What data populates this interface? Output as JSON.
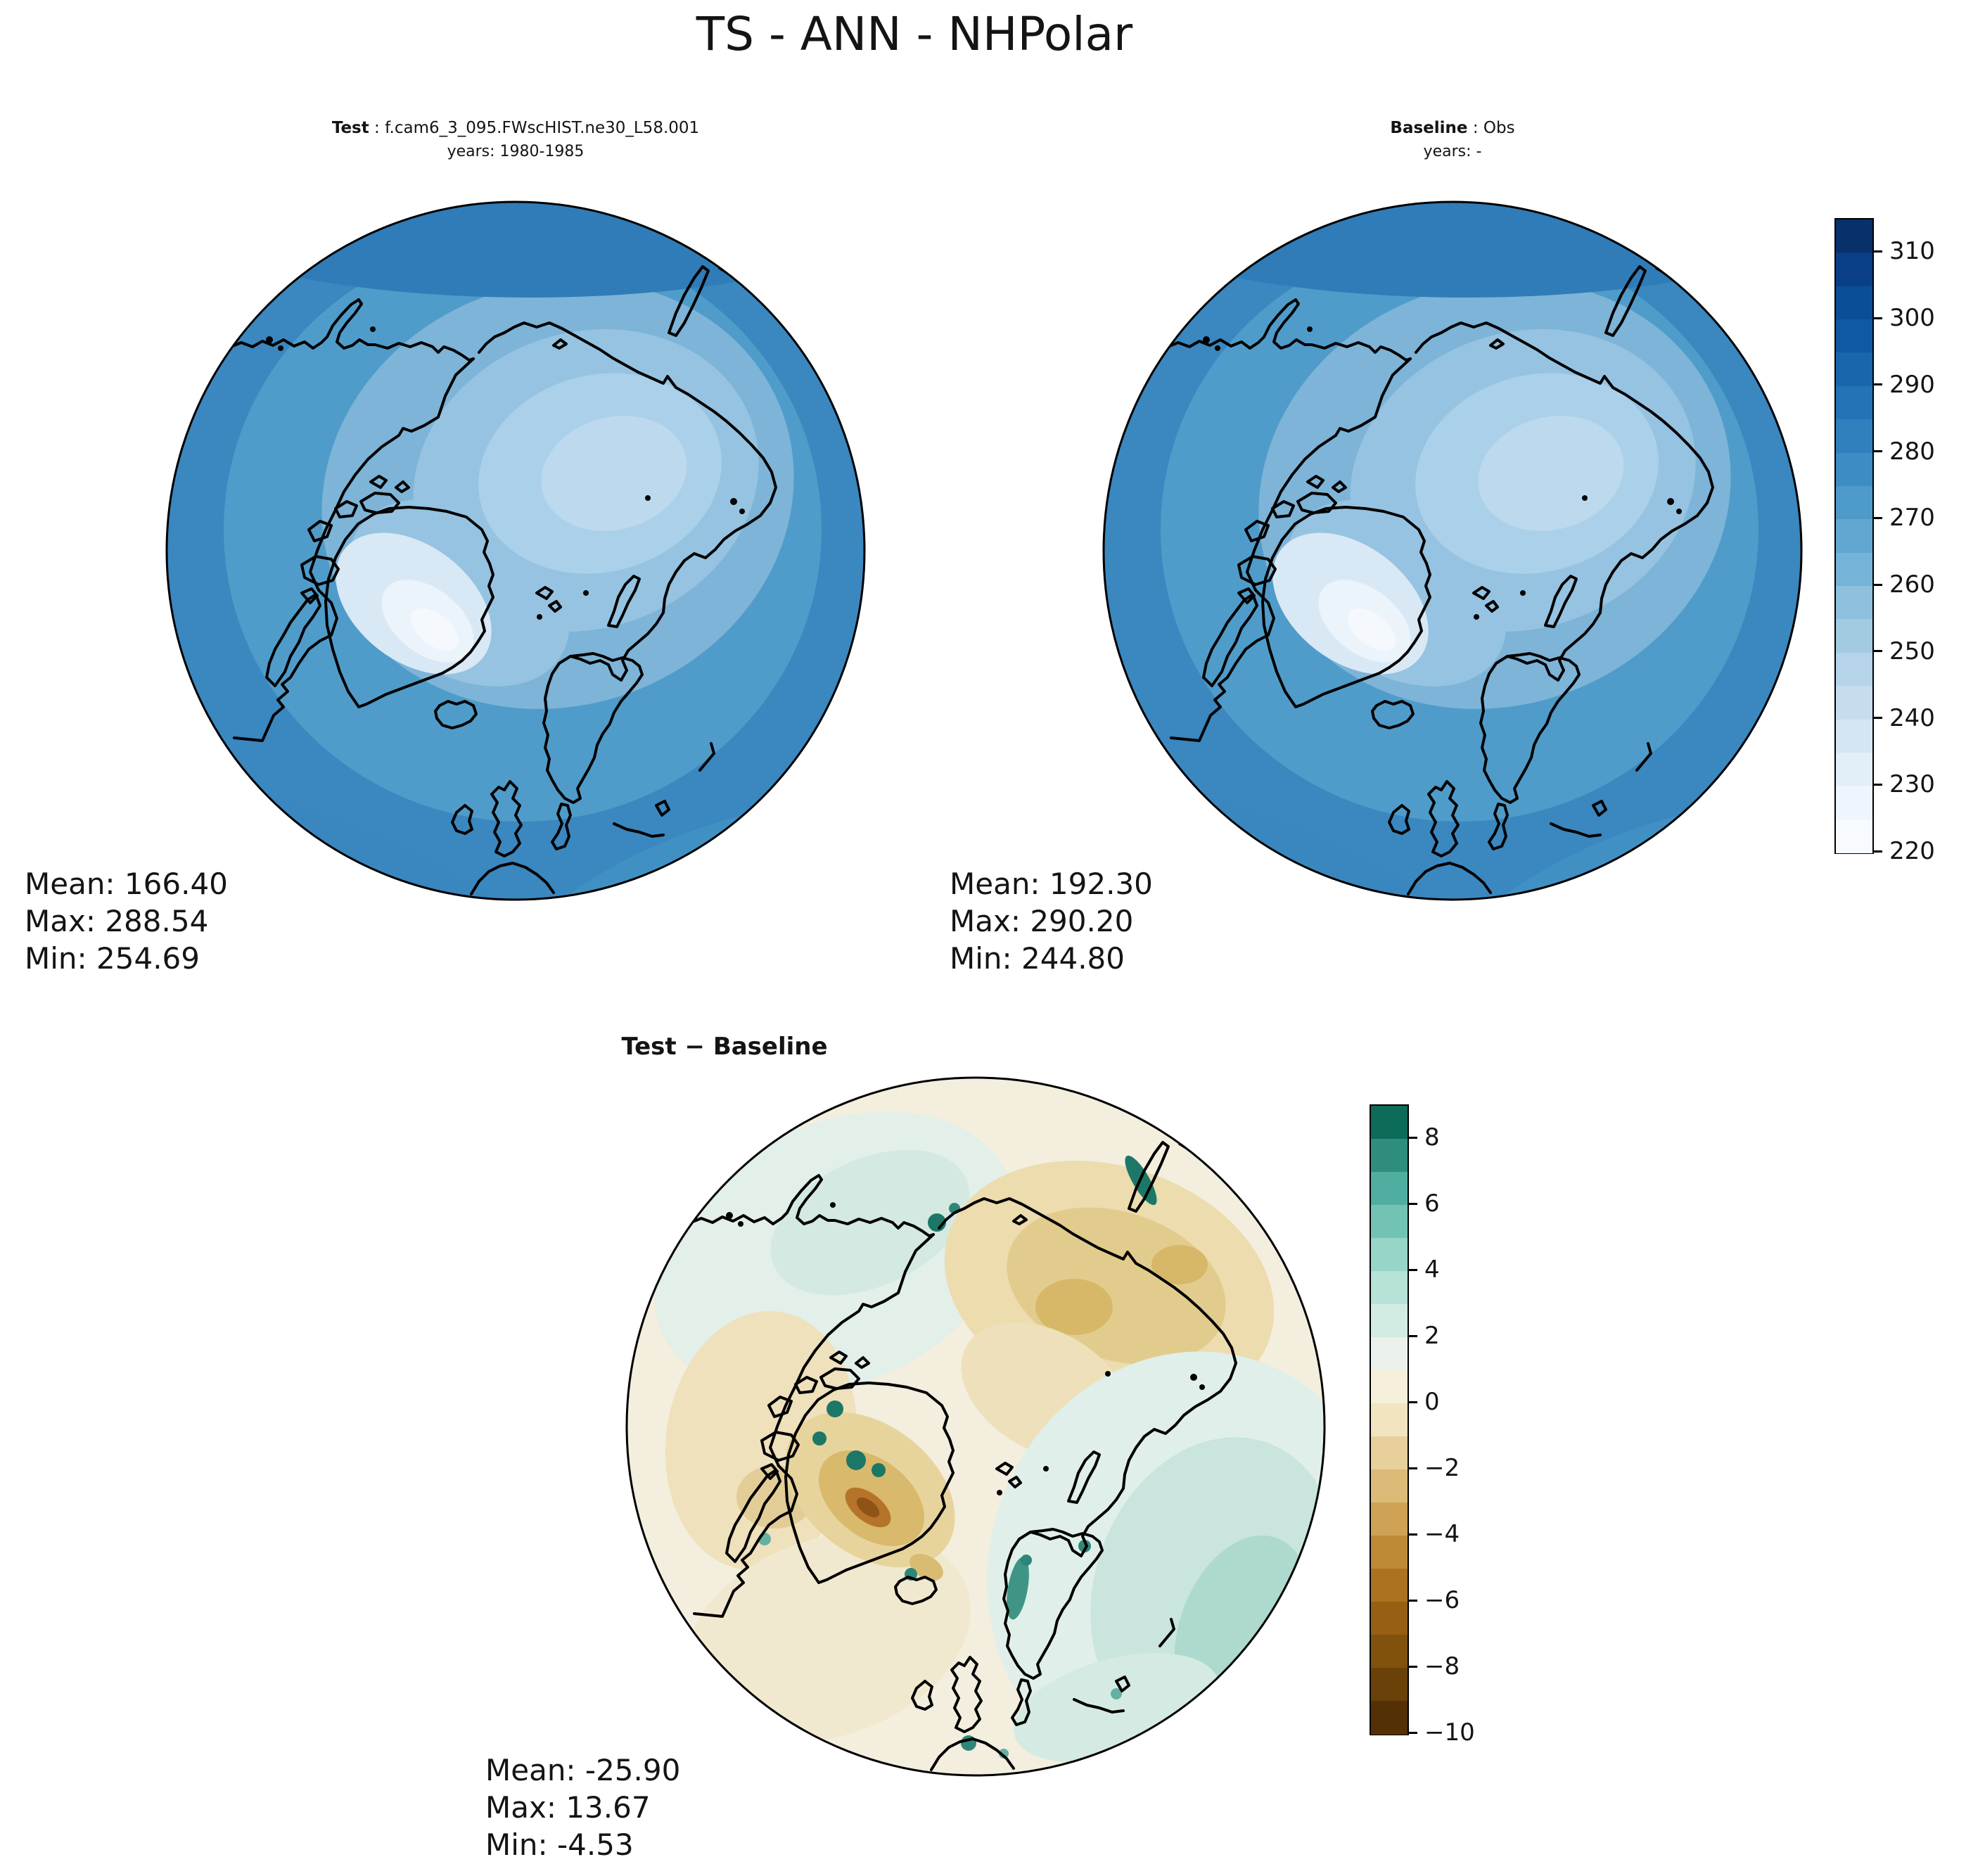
{
  "title": "TS - ANN - NHPolar",
  "panels": {
    "test": {
      "label": "Test",
      "sep": " : ",
      "name": "f.cam6_3_095.FWscHIST.ne30_L58.001",
      "years": "years: 1980-1985",
      "stats": {
        "mean": "Mean: 166.40",
        "max": "Max: 288.54",
        "min": "Min: 254.69"
      }
    },
    "baseline": {
      "label": "Baseline",
      "sep": " : ",
      "name": "Obs",
      "years": "years: -",
      "stats": {
        "mean": "Mean: 192.30",
        "max": "Max: 290.20",
        "min": "Min: 244.80"
      }
    },
    "diff": {
      "title": "Test − Baseline",
      "stats": {
        "mean": "Mean: -25.90",
        "max": "Max: 13.67",
        "min": "Min: -4.53"
      }
    }
  },
  "colorbars": [
    {
      "id": "temperature",
      "vmin": 220,
      "vmax": 315,
      "ticks": [
        {
          "label": "310",
          "v": 310
        },
        {
          "label": "300",
          "v": 300
        },
        {
          "label": "290",
          "v": 290
        },
        {
          "label": "280",
          "v": 280
        },
        {
          "label": "270",
          "v": 270
        },
        {
          "label": "260",
          "v": 260
        },
        {
          "label": "250",
          "v": 250
        },
        {
          "label": "240",
          "v": 240
        },
        {
          "label": "230",
          "v": 230
        },
        {
          "label": "220",
          "v": 220
        }
      ],
      "colors": [
        "#f7fbff",
        "#eef5fc",
        "#e2eef8",
        "#d5e5f4",
        "#c7dcef",
        "#b5d4e9",
        "#a2cbe2",
        "#8dc1dd",
        "#75b4d8",
        "#61a7d2",
        "#4e9acb",
        "#3d8dc4",
        "#2f80bd",
        "#2373b6",
        "#1966ad",
        "#1059a2",
        "#094e96",
        "#083f87",
        "#08306b"
      ]
    },
    {
      "id": "difference",
      "vmin": -10,
      "vmax": 9,
      "ticks": [
        {
          "label": "8",
          "v": 8
        },
        {
          "label": "6",
          "v": 6
        },
        {
          "label": "4",
          "v": 4
        },
        {
          "label": "2",
          "v": 2
        },
        {
          "label": "0",
          "v": 0
        },
        {
          "label": "−2",
          "v": -2
        },
        {
          "label": "−4",
          "v": -4
        },
        {
          "label": "−6",
          "v": -6
        },
        {
          "label": "−8",
          "v": -8
        },
        {
          "label": "−10",
          "v": -10
        }
      ],
      "colors": [
        "#543005",
        "#6a4109",
        "#80520e",
        "#975f14",
        "#ad721f",
        "#bf8a35",
        "#cfa355",
        "#dcba78",
        "#e8d09c",
        "#f2e4c0",
        "#f5efdc",
        "#ebf2ec",
        "#d2ebe3",
        "#b7e2d8",
        "#96d5c8",
        "#72c3b4",
        "#4fae9f",
        "#2f8d7e",
        "#0d6b59"
      ]
    }
  ],
  "colors": {
    "ocean_mid_blue": "#4f9cca",
    "arctic_light_blue": "#bcd9ee",
    "greenland_ice": "#f5f9fd",
    "diff_base_cream": "#f3eedd",
    "diff_teal": "#2e8679",
    "diff_brown": "#b5742a",
    "coastline": "#000000"
  },
  "chart_data": [
    {
      "type": "heatmap",
      "panel": "test",
      "title": "Test : f.cam6_3_095.FWscHIST.ne30_L58.001 — years: 1980-1985",
      "variable": "TS",
      "season": "ANN",
      "region": "NHPolar",
      "projection": "north-polar-stereographic",
      "colormap": "Blues",
      "value_range": [
        220,
        315
      ],
      "tick_values": [
        220,
        230,
        240,
        250,
        260,
        270,
        280,
        290,
        300,
        310
      ],
      "stats": {
        "mean": 166.4,
        "max": 288.54,
        "min": 254.69
      }
    },
    {
      "type": "heatmap",
      "panel": "baseline",
      "title": "Baseline : Obs — years: -",
      "variable": "TS",
      "season": "ANN",
      "region": "NHPolar",
      "projection": "north-polar-stereographic",
      "colormap": "Blues",
      "value_range": [
        220,
        315
      ],
      "tick_values": [
        220,
        230,
        240,
        250,
        260,
        270,
        280,
        290,
        300,
        310
      ],
      "stats": {
        "mean": 192.3,
        "max": 290.2,
        "min": 244.8
      }
    },
    {
      "type": "heatmap",
      "panel": "difference",
      "title": "Test − Baseline",
      "variable": "TS",
      "season": "ANN",
      "region": "NHPolar",
      "projection": "north-polar-stereographic",
      "colormap": "BrBG",
      "value_range": [
        -10,
        9
      ],
      "tick_values": [
        -10,
        -8,
        -6,
        -4,
        -2,
        0,
        2,
        4,
        6,
        8
      ],
      "stats": {
        "mean": -25.9,
        "max": 13.67,
        "min": -4.53
      }
    }
  ]
}
